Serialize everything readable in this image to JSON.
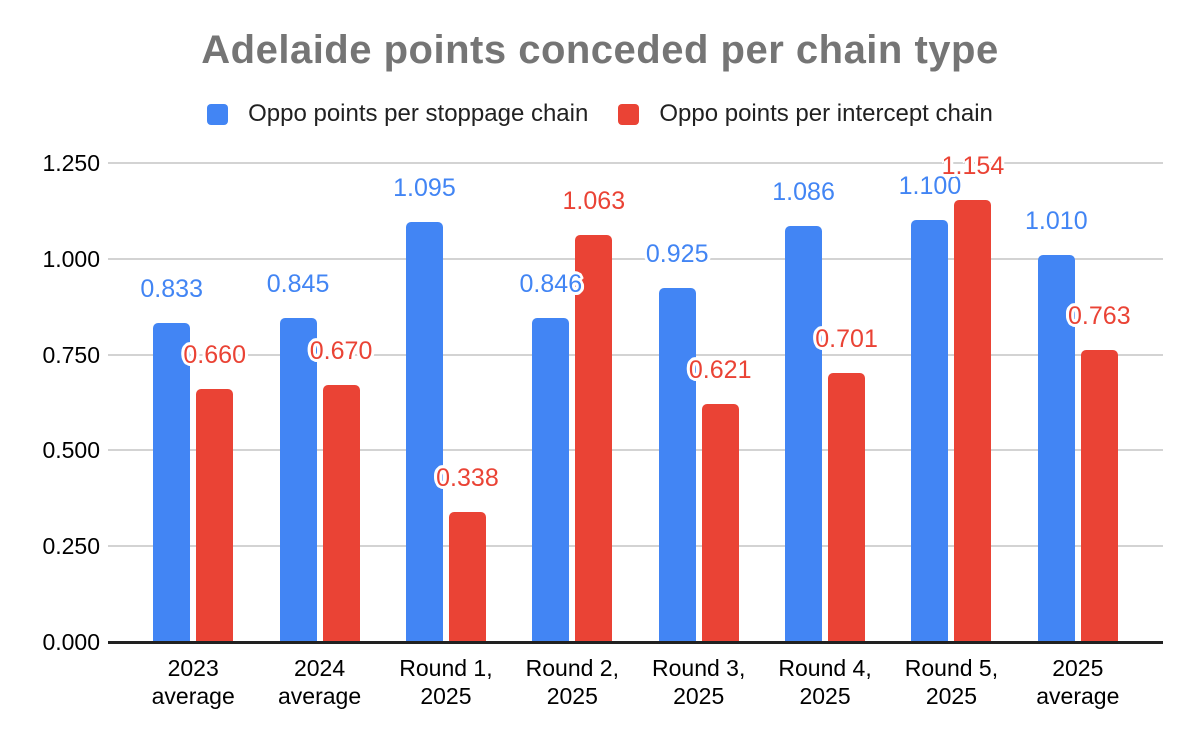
{
  "chart_data": {
    "type": "bar",
    "title": "Adelaide points conceded per chain type",
    "xlabel": "",
    "ylabel": "",
    "categories": [
      "2023\naverage",
      "2024\naverage",
      "Round 1,\n2025",
      "Round 2,\n2025",
      "Round 3,\n2025",
      "Round 4,\n2025",
      "Round 5,\n2025",
      "2025\naverage"
    ],
    "series": [
      {
        "name": "Oppo points per stoppage chain",
        "color": "#4285F4",
        "values": [
          0.833,
          0.845,
          1.095,
          0.846,
          0.925,
          1.086,
          1.1,
          1.01
        ],
        "labels": [
          "0.833",
          "0.845",
          "1.095",
          "0.846",
          "0.925",
          "1.086",
          "1.100",
          "1.010"
        ]
      },
      {
        "name": "Oppo points per intercept chain",
        "color": "#EA4335",
        "values": [
          0.66,
          0.67,
          0.338,
          1.063,
          0.621,
          0.701,
          1.154,
          0.763
        ],
        "labels": [
          "0.660",
          "0.670",
          "0.338",
          "1.063",
          "0.621",
          "0.701",
          "1.154",
          "0.763"
        ]
      }
    ],
    "ylim": [
      0,
      1.25
    ],
    "yticks": [
      {
        "value": 0.0,
        "label": "0.000"
      },
      {
        "value": 0.25,
        "label": "0.250"
      },
      {
        "value": 0.5,
        "label": "0.500"
      },
      {
        "value": 0.75,
        "label": "0.750"
      },
      {
        "value": 1.0,
        "label": "1.000"
      },
      {
        "value": 1.25,
        "label": "1.250"
      }
    ],
    "grid": true,
    "legend_position": "top",
    "colors": {
      "title_text": "#757575",
      "legend_text": "#212121",
      "tick_text": "#000000",
      "category_text": "#000000",
      "gridline": "#d3d3d3",
      "axis_line": "#212121",
      "background": "#ffffff"
    }
  }
}
